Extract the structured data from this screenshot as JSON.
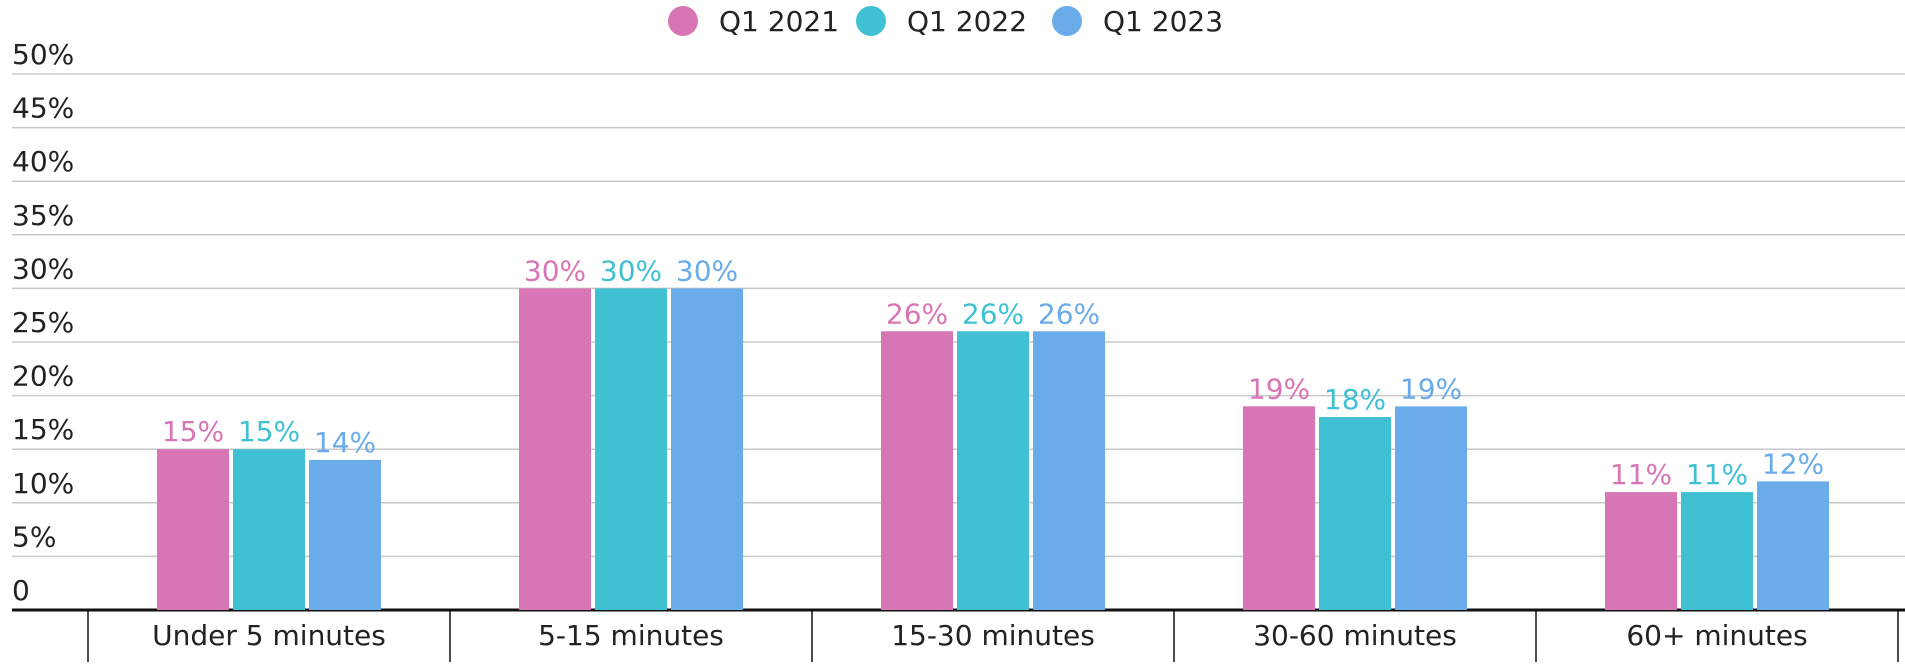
{
  "chart_data": {
    "type": "bar",
    "categories": [
      "Under 5 minutes",
      "5-15 minutes",
      "15-30 minutes",
      "30-60 minutes",
      "60+ minutes"
    ],
    "series": [
      {
        "name": "Q1 2021",
        "color": "#d875b5",
        "values": [
          15,
          30,
          26,
          19,
          11
        ],
        "value_labels": [
          "15%",
          "30%",
          "26%",
          "19%",
          "11%"
        ]
      },
      {
        "name": "Q1 2022",
        "color": "#3fc1d3",
        "values": [
          15,
          30,
          26,
          18,
          11
        ],
        "value_labels": [
          "15%",
          "30%",
          "26%",
          "18%",
          "11%"
        ]
      },
      {
        "name": "Q1 2023",
        "color": "#6aabea",
        "values": [
          14,
          30,
          26,
          19,
          12
        ],
        "value_labels": [
          "14%",
          "30%",
          "26%",
          "19%",
          "12%"
        ]
      }
    ],
    "ylim": [
      0,
      50
    ],
    "yticks": [
      0,
      {
        "value": 5,
        "label": "5%"
      },
      {
        "value": 10,
        "label": "10%"
      },
      {
        "value": 15,
        "label": "15%"
      },
      {
        "value": 20,
        "label": "20%"
      },
      {
        "value": 25,
        "label": "25%"
      },
      {
        "value": 30,
        "label": "30%"
      },
      {
        "value": 35,
        "label": "35%"
      },
      {
        "value": 40,
        "label": "40%"
      },
      {
        "value": 45,
        "label": "45%"
      },
      {
        "value": 50,
        "label": "50%"
      }
    ],
    "grid": true,
    "legend": "top"
  }
}
